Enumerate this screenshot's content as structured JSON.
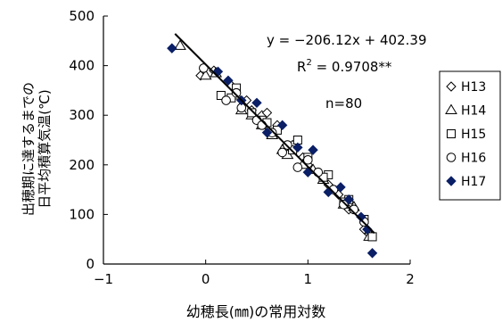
{
  "chart_data": {
    "type": "scatter",
    "xlabel": "幼穂長(㎜)の常用対数",
    "ylabel_lines": [
      "出穂期に達するまでの",
      "日平均積算気温(℃)"
    ],
    "xlim": [
      -1,
      2
    ],
    "ylim": [
      0,
      500
    ],
    "xticks": [
      -1,
      0,
      1,
      2
    ],
    "yticks": [
      0,
      100,
      200,
      300,
      400,
      500
    ],
    "xtick_labels": [
      "−1",
      "0",
      "1",
      "2"
    ],
    "ytick_labels": [
      "0",
      "100",
      "200",
      "300",
      "400",
      "500"
    ],
    "grid": false,
    "legend_position": "right",
    "annotations": {
      "equation": "y = −206.12x + 402.39",
      "r2_prefix": "R",
      "r2_sup": "2",
      "r2_suffix": " = 0.9708**",
      "n": "n=80"
    },
    "trendline": {
      "slope": -206.12,
      "intercept": 402.39,
      "x_range": [
        -0.3,
        1.65
      ]
    },
    "series": [
      {
        "name": "H13",
        "marker": "diamond-open",
        "points": [
          [
            -0.05,
            380
          ],
          [
            0.25,
            360
          ],
          [
            0.4,
            330
          ],
          [
            0.55,
            300
          ],
          [
            0.7,
            280
          ],
          [
            0.85,
            240
          ],
          [
            1.0,
            200
          ],
          [
            1.2,
            160
          ],
          [
            1.4,
            110
          ],
          [
            1.55,
            70
          ],
          [
            0.08,
            390
          ],
          [
            0.45,
            310
          ],
          [
            0.95,
            215
          ],
          [
            1.3,
            140
          ],
          [
            1.6,
            60
          ],
          [
            0.6,
            305
          ]
        ]
      },
      {
        "name": "H14",
        "marker": "triangle-open",
        "points": [
          [
            -0.25,
            440
          ],
          [
            0.0,
            380
          ],
          [
            0.3,
            340
          ],
          [
            0.45,
            300
          ],
          [
            0.55,
            280
          ],
          [
            0.75,
            230
          ],
          [
            0.95,
            200
          ],
          [
            1.15,
            170
          ],
          [
            1.35,
            120
          ],
          [
            1.6,
            55
          ],
          [
            0.35,
            310
          ],
          [
            0.8,
            220
          ],
          [
            1.45,
            115
          ],
          [
            0.1,
            385
          ],
          [
            1.05,
            190
          ],
          [
            0.65,
            260
          ]
        ]
      },
      {
        "name": "H15",
        "marker": "square-open",
        "points": [
          [
            0.15,
            340
          ],
          [
            0.3,
            355
          ],
          [
            0.55,
            290
          ],
          [
            0.7,
            270
          ],
          [
            0.9,
            250
          ],
          [
            1.0,
            215
          ],
          [
            1.2,
            180
          ],
          [
            1.4,
            130
          ],
          [
            1.55,
            90
          ],
          [
            1.63,
            55
          ],
          [
            0.25,
            335
          ],
          [
            0.6,
            285
          ],
          [
            0.85,
            230
          ],
          [
            1.15,
            175
          ],
          [
            1.35,
            125
          ],
          [
            0.45,
            305
          ]
        ]
      },
      {
        "name": "H16",
        "marker": "circle-open",
        "points": [
          [
            -0.02,
            395
          ],
          [
            0.2,
            330
          ],
          [
            0.35,
            315
          ],
          [
            0.5,
            290
          ],
          [
            0.65,
            265
          ],
          [
            0.8,
            240
          ],
          [
            0.9,
            195
          ],
          [
            1.1,
            185
          ],
          [
            1.25,
            150
          ],
          [
            1.45,
            110
          ],
          [
            1.55,
            85
          ],
          [
            0.3,
            345
          ],
          [
            0.55,
            280
          ],
          [
            0.75,
            225
          ],
          [
            1.0,
            210
          ],
          [
            1.35,
            120
          ]
        ]
      },
      {
        "name": "H17",
        "marker": "diamond-filled",
        "points": [
          [
            -0.33,
            435
          ],
          [
            0.12,
            388
          ],
          [
            0.22,
            370
          ],
          [
            0.35,
            330
          ],
          [
            0.5,
            325
          ],
          [
            0.6,
            265
          ],
          [
            0.75,
            280
          ],
          [
            0.9,
            235
          ],
          [
            1.0,
            185
          ],
          [
            1.05,
            230
          ],
          [
            1.2,
            145
          ],
          [
            1.32,
            155
          ],
          [
            1.4,
            130
          ],
          [
            1.52,
            95
          ],
          [
            1.58,
            70
          ],
          [
            1.63,
            22
          ]
        ]
      }
    ]
  }
}
